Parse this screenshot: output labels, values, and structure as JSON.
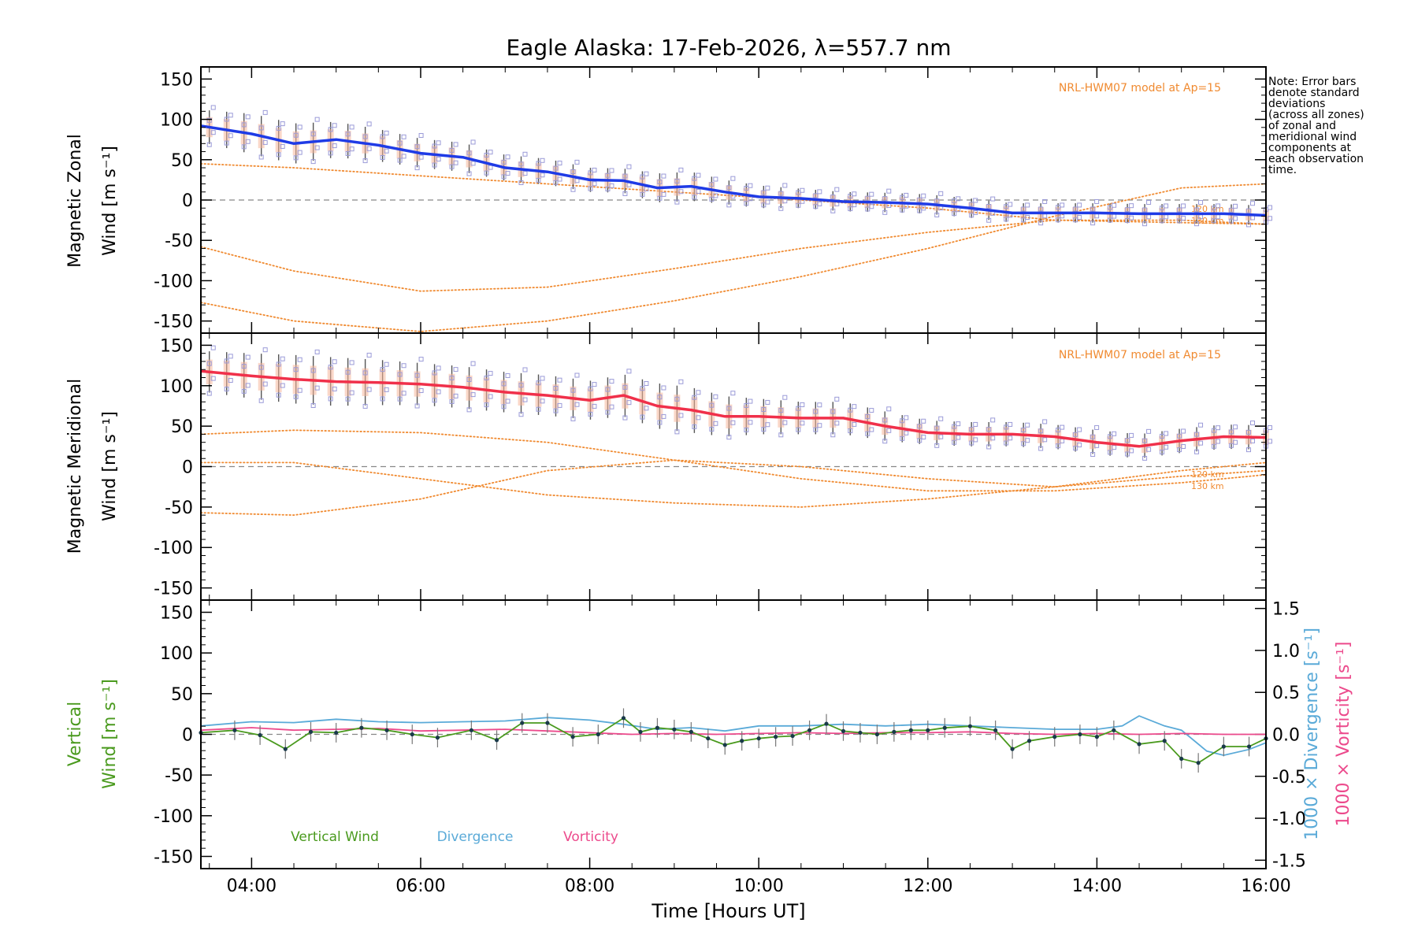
{
  "chart_data": {
    "title": "Eagle Alaska: 17-Feb-2026, λ=557.7 nm",
    "xlabel": "Time [Hours UT]",
    "x_ticks": [
      "04:00",
      "06:00",
      "08:00",
      "10:00",
      "12:00",
      "14:00",
      "16:00"
    ],
    "x_tick_hours": [
      4,
      6,
      8,
      10,
      12,
      14,
      16
    ],
    "xlim": [
      3.4,
      16.0
    ],
    "note_lines": [
      "Note: Error bars",
      "denote standard",
      "deviations",
      "(across all zones)",
      "of zonal and",
      "meridional wind",
      "components at",
      "each observation",
      "time."
    ],
    "model_label": "NRL-HWM07 model at Ap=15",
    "model_alt_labels": [
      "120 km",
      "130 km"
    ],
    "colors": {
      "zonal": "#1f3be6",
      "meridional": "#f0304a",
      "vertical": "#4a9a1e",
      "divergence": "#5aaad8",
      "vorticity": "#ec4a8c",
      "model": "#f08a30",
      "zone_points": "#9b9bd8",
      "errorbar": "#555555"
    },
    "panels": [
      {
        "type": "line",
        "id": "zonal",
        "ylabel_line1": "Magnetic Zonal",
        "ylabel_wind": "Wind",
        "ylabel_units": "[m s⁻¹]",
        "ylim": [
          -165,
          165
        ],
        "y_ticks": [
          150,
          100,
          50,
          0,
          -50,
          -100,
          -150
        ],
        "series": {
          "name": "Magnetic Zonal Wind",
          "x": [
            3.4,
            4.0,
            4.5,
            5.0,
            5.5,
            6.0,
            6.5,
            7.0,
            7.5,
            8.0,
            8.4,
            8.8,
            9.2,
            9.6,
            10.0,
            10.5,
            11.0,
            11.5,
            12.0,
            12.5,
            13.0,
            13.5,
            14.0,
            14.5,
            15.0,
            15.5,
            16.0
          ],
          "values": [
            92,
            82,
            70,
            75,
            68,
            58,
            53,
            40,
            35,
            25,
            24,
            15,
            17,
            10,
            4,
            2,
            -2,
            -3,
            -5,
            -10,
            -16,
            -16,
            -16,
            -17,
            -17,
            -17,
            -19
          ],
          "error": [
            20,
            25,
            25,
            22,
            20,
            18,
            18,
            16,
            16,
            15,
            15,
            18,
            18,
            15,
            14,
            12,
            12,
            12,
            12,
            12,
            12,
            12,
            12,
            12,
            12,
            12,
            12
          ]
        },
        "model_curves": [
          {
            "name": "120 km",
            "x": [
              3.4,
              4.5,
              6.0,
              7.5,
              9.0,
              10.5,
              12.0,
              13.5,
              15.0,
              16.0
            ],
            "values": [
              45,
              40,
              30,
              20,
              10,
              0,
              -10,
              -25,
              -28,
              -30
            ]
          },
          {
            "name": "130 km",
            "x": [
              3.4,
              4.5,
              6.0,
              7.5,
              9.0,
              10.5,
              12.0,
              13.5,
              15.0,
              16.0
            ],
            "values": [
              -58,
              -88,
              -113,
              -108,
              -85,
              -60,
              -40,
              -25,
              -25,
              -30
            ]
          },
          {
            "name": "model-3",
            "x": [
              3.4,
              4.5,
              6.0,
              7.5,
              9.0,
              10.5,
              12.0,
              13.5,
              15.0,
              16.0
            ],
            "values": [
              -127,
              -150,
              -163,
              -150,
              -125,
              -95,
              -60,
              -20,
              15,
              20
            ]
          }
        ]
      },
      {
        "type": "line",
        "id": "meridional",
        "ylabel_line1": "Magnetic Meridional",
        "ylabel_wind": "Wind",
        "ylabel_units": "[m s⁻¹]",
        "ylim": [
          -165,
          165
        ],
        "y_ticks": [
          150,
          100,
          50,
          0,
          -50,
          -100,
          -150
        ],
        "series": {
          "name": "Magnetic Meridional Wind",
          "x": [
            3.4,
            4.0,
            4.5,
            5.0,
            5.5,
            6.0,
            6.5,
            7.0,
            7.5,
            8.0,
            8.4,
            8.8,
            9.2,
            9.6,
            10.0,
            10.5,
            11.0,
            11.5,
            12.0,
            12.5,
            13.0,
            13.5,
            14.0,
            14.5,
            15.0,
            15.5,
            16.0
          ],
          "values": [
            118,
            112,
            108,
            105,
            104,
            102,
            98,
            92,
            88,
            82,
            88,
            75,
            70,
            62,
            62,
            60,
            60,
            50,
            42,
            40,
            40,
            37,
            30,
            25,
            32,
            37,
            36
          ],
          "error": [
            25,
            28,
            30,
            30,
            28,
            26,
            26,
            25,
            25,
            24,
            26,
            28,
            28,
            25,
            22,
            20,
            20,
            18,
            15,
            15,
            15,
            15,
            15,
            15,
            15,
            15,
            15
          ]
        },
        "model_curves": [
          {
            "name": "120 km",
            "x": [
              3.4,
              4.5,
              6.0,
              7.5,
              9.0,
              10.5,
              12.0,
              13.5,
              15.0,
              16.0
            ],
            "values": [
              40,
              45,
              42,
              30,
              8,
              -15,
              -30,
              -30,
              -20,
              -10
            ]
          },
          {
            "name": "130 km",
            "x": [
              3.4,
              4.5,
              6.0,
              7.5,
              9.0,
              10.5,
              12.0,
              13.5,
              15.0,
              16.0
            ],
            "values": [
              -57,
              -60,
              -40,
              -5,
              8,
              0,
              -15,
              -25,
              -12,
              -5
            ]
          },
          {
            "name": "model-3",
            "x": [
              3.4,
              4.5,
              6.0,
              7.5,
              9.0,
              10.5,
              12.0,
              13.5,
              15.0,
              16.0
            ],
            "values": [
              5,
              5,
              -15,
              -35,
              -45,
              -50,
              -40,
              -25,
              -5,
              5
            ]
          }
        ]
      },
      {
        "type": "line",
        "id": "vertical",
        "ylabel_line1": "Vertical",
        "ylabel_wind": "Wind",
        "ylabel_units": "[m s⁻¹]",
        "ylim": [
          -165,
          165
        ],
        "y_ticks": [
          150,
          100,
          50,
          0,
          -50,
          -100,
          -150
        ],
        "right_ylim": [
          -1.6,
          1.6
        ],
        "right_y_ticks": [
          "1.5",
          "1.0",
          "0.5",
          "0.0",
          "-0.5",
          "-1.0",
          "-1.5"
        ],
        "right_y_tick_values": [
          1.5,
          1.0,
          0.5,
          0.0,
          -0.5,
          -1.0,
          -1.5
        ],
        "right_label_div_text": "1000 × Divergence",
        "right_label_div_units": "[s⁻¹]",
        "right_label_vor_text": "1000 × Vorticity",
        "right_label_vor_units": "[s⁻¹]",
        "legend": [
          "Vertical Wind",
          "Divergence",
          "Vorticity"
        ],
        "series": [
          {
            "name": "Vertical Wind",
            "x": [
              3.4,
              3.8,
              4.1,
              4.4,
              4.7,
              5.0,
              5.3,
              5.6,
              5.9,
              6.2,
              6.6,
              6.9,
              7.2,
              7.5,
              7.8,
              8.1,
              8.4,
              8.6,
              8.8,
              9.0,
              9.2,
              9.4,
              9.6,
              9.8,
              10.0,
              10.2,
              10.4,
              10.6,
              10.8,
              11.0,
              11.2,
              11.4,
              11.6,
              11.8,
              12.0,
              12.2,
              12.5,
              12.8,
              13.0,
              13.2,
              13.5,
              13.8,
              14.0,
              14.2,
              14.5,
              14.8,
              15.0,
              15.2,
              15.5,
              15.8,
              16.0
            ],
            "values": [
              2,
              5,
              -1,
              -18,
              3,
              2,
              8,
              5,
              0,
              -4,
              5,
              -7,
              14,
              14,
              -3,
              0,
              20,
              3,
              8,
              6,
              3,
              -5,
              -13,
              -8,
              -5,
              -3,
              -2,
              5,
              13,
              4,
              2,
              0,
              3,
              5,
              5,
              8,
              10,
              5,
              -18,
              -8,
              -3,
              0,
              -3,
              5,
              -12,
              -8,
              -30,
              -35,
              -15,
              -15,
              -5
            ]
          },
          {
            "name": "Divergence",
            "x": [
              3.4,
              4.0,
              4.5,
              5.0,
              5.5,
              6.0,
              6.5,
              7.0,
              7.5,
              8.0,
              8.4,
              8.8,
              9.2,
              9.6,
              10.0,
              10.5,
              11.0,
              11.5,
              12.0,
              12.5,
              13.0,
              13.5,
              14.0,
              14.3,
              14.5,
              14.8,
              15.0,
              15.3,
              15.5,
              15.8,
              16.0
            ],
            "values": [
              0.1,
              0.15,
              0.14,
              0.18,
              0.15,
              0.14,
              0.15,
              0.16,
              0.2,
              0.17,
              0.12,
              0.06,
              0.08,
              0.04,
              0.1,
              0.1,
              0.12,
              0.1,
              0.12,
              0.1,
              0.08,
              0.06,
              0.06,
              0.1,
              0.22,
              0.1,
              0.05,
              -0.2,
              -0.25,
              -0.18,
              -0.1
            ]
          },
          {
            "name": "Vorticity",
            "x": [
              3.4,
              4.0,
              4.5,
              5.0,
              5.5,
              6.0,
              6.5,
              7.0,
              7.5,
              8.0,
              8.5,
              9.0,
              9.5,
              10.0,
              10.5,
              11.0,
              11.5,
              12.0,
              12.5,
              13.0,
              13.5,
              14.0,
              14.5,
              15.0,
              15.5,
              16.0
            ],
            "values": [
              0.05,
              0.08,
              0.05,
              0.06,
              0.07,
              0.04,
              0.05,
              0.06,
              0.04,
              0.02,
              0.0,
              0.01,
              0.0,
              0.01,
              0.02,
              0.01,
              0.02,
              0.02,
              0.03,
              0.01,
              0.0,
              0.01,
              0.0,
              0.01,
              0.0,
              0.0
            ]
          }
        ]
      }
    ]
  }
}
